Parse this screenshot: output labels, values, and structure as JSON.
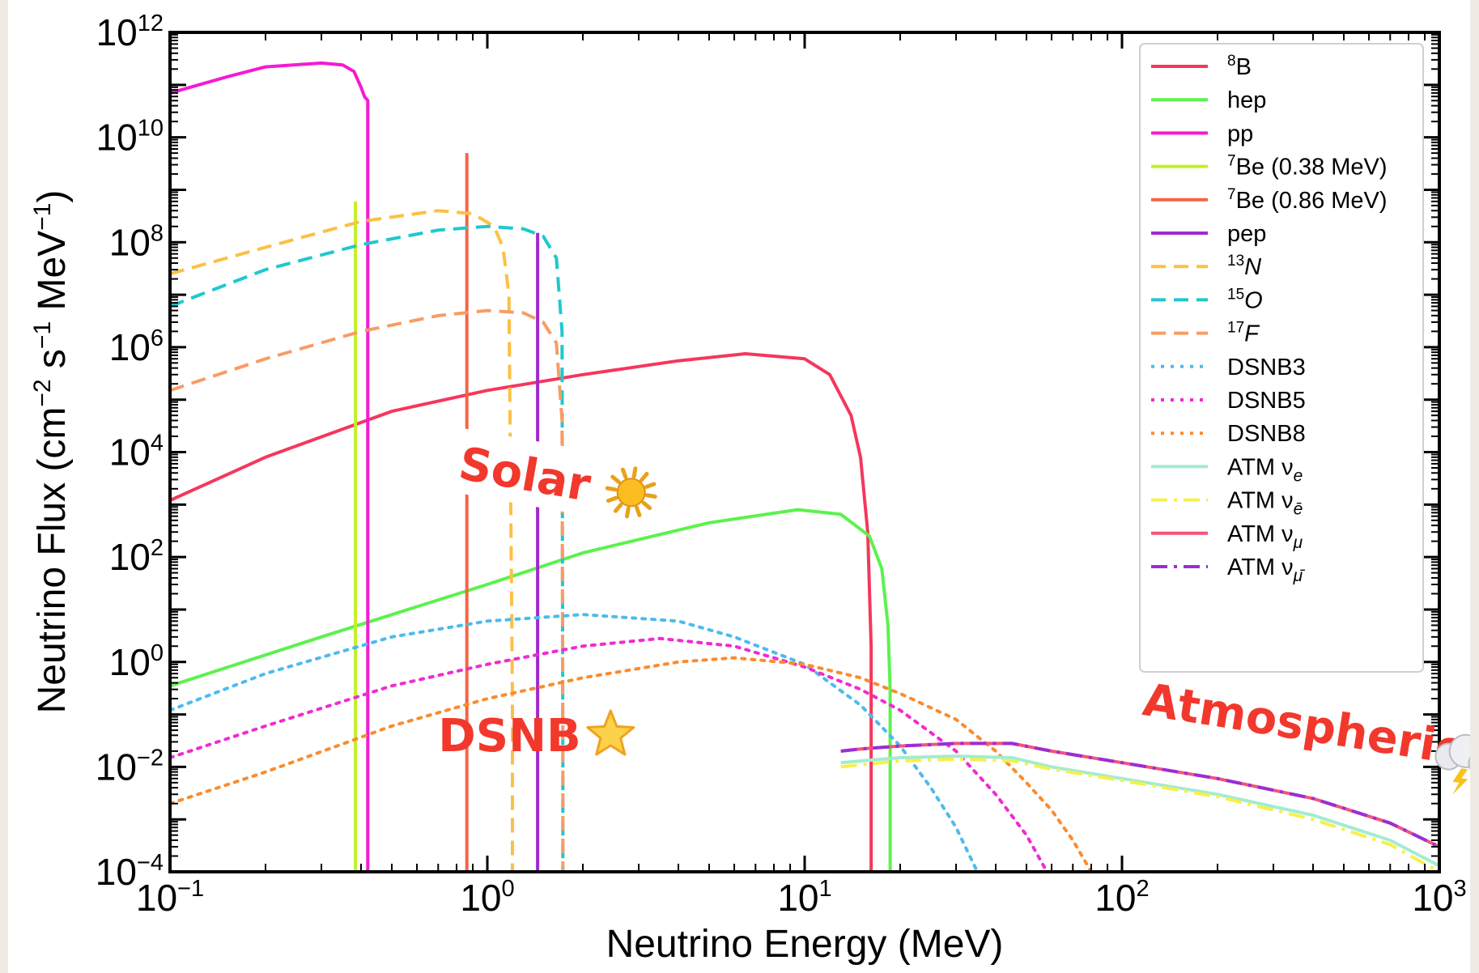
{
  "chart_data": {
    "type": "line",
    "xlabel": "Neutrino Energy (MeV)",
    "ylabel": "Neutrino Flux (cm",
    "ylabel_parts": [
      "Neutrino Flux (cm",
      "−2",
      " s",
      "−1",
      " MeV",
      "−1",
      ")"
    ],
    "x_scale": "log",
    "y_scale": "log",
    "xlim": [
      0.1,
      1000
    ],
    "ylim": [
      0.0001,
      1000000000000
    ],
    "x_ticks": [
      {
        "value": 0.1,
        "base": "10",
        "exp": "−1"
      },
      {
        "value": 1,
        "base": "10",
        "exp": "0"
      },
      {
        "value": 10,
        "base": "10",
        "exp": "1"
      },
      {
        "value": 100,
        "base": "10",
        "exp": "2"
      },
      {
        "value": 1000,
        "base": "10",
        "exp": "3"
      }
    ],
    "y_ticks": [
      {
        "value": 0.0001,
        "base": "10",
        "exp": "−4"
      },
      {
        "value": 0.01,
        "base": "10",
        "exp": "−2"
      },
      {
        "value": 1,
        "base": "10",
        "exp": "0"
      },
      {
        "value": 100,
        "base": "10",
        "exp": "2"
      },
      {
        "value": 10000,
        "base": "10",
        "exp": "4"
      },
      {
        "value": 1000000,
        "base": "10",
        "exp": "6"
      },
      {
        "value": 100000000,
        "base": "10",
        "exp": "8"
      },
      {
        "value": 10000000000,
        "base": "10",
        "exp": "10"
      },
      {
        "value": 1000000000000,
        "base": "10",
        "exp": "12"
      }
    ],
    "legend_position": "top-right",
    "grid": false,
    "series": [
      {
        "name": "8B",
        "label_sup": "8",
        "label_main": "B",
        "color": "#f5375d",
        "style": "solid",
        "x": [
          0.1,
          0.2,
          0.5,
          1,
          2,
          4,
          6.5,
          10,
          12,
          14,
          15,
          15.8,
          16.2,
          16.2
        ],
        "y": [
          1200,
          8000,
          60000,
          150000,
          300000,
          550000,
          750000,
          600000,
          300000,
          50000,
          8000,
          300,
          2,
          0.0001
        ]
      },
      {
        "name": "hep",
        "label_main": "hep",
        "color": "#5cf24d",
        "style": "solid",
        "x": [
          0.1,
          0.3,
          1,
          2,
          5,
          9.5,
          13,
          16,
          17.5,
          18.3,
          18.6,
          18.6
        ],
        "y": [
          0.35,
          3,
          30,
          120,
          450,
          800,
          650,
          250,
          60,
          5,
          0.3,
          0.0001
        ]
      },
      {
        "name": "pp",
        "label_main": "pp",
        "color": "#f51ad2",
        "style": "solid",
        "x": [
          0.1,
          0.15,
          0.2,
          0.3,
          0.35,
          0.38,
          0.4,
          0.41,
          0.42,
          0.42
        ],
        "y": [
          70000000000,
          140000000000,
          220000000000,
          260000000000,
          240000000000,
          180000000000,
          90000000000,
          60000000000,
          50000000000,
          0.0001
        ]
      },
      {
        "name": "7Be (0.38 MeV)",
        "label_sup": "7",
        "label_main": "Be (0.38 MeV)",
        "color": "#c3f024",
        "style": "solid",
        "x": [
          0.384,
          0.384
        ],
        "y": [
          0.0001,
          600000000
        ]
      },
      {
        "name": "7Be (0.86 MeV)",
        "label_sup": "7",
        "label_main": "Be (0.86 MeV)",
        "color": "#f56444",
        "style": "solid",
        "x": [
          0.862,
          0.862
        ],
        "y": [
          0.0001,
          5000000000
        ]
      },
      {
        "name": "pep",
        "label_main": "pep",
        "color": "#a129ce",
        "style": "solid",
        "x": [
          1.44,
          1.44
        ],
        "y": [
          0.0001,
          150000000
        ]
      },
      {
        "name": "13N",
        "label_sup": "13",
        "label_main": "N",
        "italic": true,
        "color": "#fcc044",
        "style": "dashed",
        "x": [
          0.1,
          0.2,
          0.4,
          0.7,
          0.9,
          1.05,
          1.12,
          1.17,
          1.2,
          1.2
        ],
        "y": [
          25000000,
          80000000,
          250000000,
          400000000,
          350000000,
          200000000,
          80000000,
          10000000,
          0.2,
          0.0001
        ]
      },
      {
        "name": "15O",
        "label_sup": "15",
        "label_main": "O",
        "italic": true,
        "color": "#1fc8cf",
        "style": "dashed",
        "x": [
          0.1,
          0.2,
          0.4,
          0.7,
          1,
          1.3,
          1.5,
          1.65,
          1.72,
          1.73,
          1.73
        ],
        "y": [
          6000000,
          30000000,
          90000000,
          170000000,
          200000000,
          180000000,
          130000000,
          50000000,
          2000000,
          0.01,
          0.0001
        ]
      },
      {
        "name": "17F",
        "label_sup": "17",
        "label_main": "F",
        "italic": true,
        "color": "#f89c66",
        "style": "dashed",
        "x": [
          0.1,
          0.2,
          0.4,
          0.7,
          1,
          1.3,
          1.5,
          1.65,
          1.72,
          1.73,
          1.73
        ],
        "y": [
          150000,
          600000,
          2000000,
          4000000,
          5000000,
          4500000,
          3000000,
          1200000,
          40000,
          0.01,
          0.0001
        ]
      },
      {
        "name": "DSNB3",
        "label_main": "DSNB3",
        "color": "#4bbcec",
        "style": "dotted",
        "x": [
          0.1,
          0.2,
          0.5,
          1,
          2,
          4,
          6,
          10,
          15,
          20,
          25,
          30,
          35
        ],
        "y": [
          0.12,
          0.6,
          3,
          6,
          8,
          6,
          3,
          0.9,
          0.15,
          0.025,
          0.004,
          0.0007,
          0.0001
        ]
      },
      {
        "name": "DSNB5",
        "label_main": "DSNB5",
        "color": "#f02bd1",
        "style": "dotted",
        "x": [
          0.1,
          0.2,
          0.5,
          1,
          2,
          3.5,
          6,
          10,
          15,
          20,
          30,
          40,
          50,
          58
        ],
        "y": [
          0.015,
          0.06,
          0.35,
          0.9,
          2,
          2.8,
          2,
          0.8,
          0.3,
          0.12,
          0.02,
          0.003,
          0.0005,
          0.0001
        ]
      },
      {
        "name": "DSNB8",
        "label_main": "DSNB8",
        "color": "#fa8c2e",
        "style": "dotted",
        "x": [
          0.1,
          0.2,
          0.5,
          1,
          2,
          4,
          6,
          10,
          15,
          20,
          30,
          40,
          50,
          60,
          70,
          80
        ],
        "y": [
          0.002,
          0.008,
          0.06,
          0.2,
          0.5,
          1,
          1.2,
          0.9,
          0.5,
          0.25,
          0.08,
          0.02,
          0.005,
          0.0015,
          0.0004,
          0.0001
        ]
      },
      {
        "name": "ATM νe",
        "label_main": "ATM ν",
        "label_sub": "e",
        "color": "#a2ecd0",
        "style": "solid",
        "x": [
          13,
          15,
          20,
          30,
          45,
          60,
          100,
          200,
          400,
          700,
          1000
        ],
        "y": [
          0.012,
          0.013,
          0.015,
          0.016,
          0.015,
          0.01,
          0.006,
          0.003,
          0.0012,
          0.0004,
          0.00013
        ]
      },
      {
        "name": "ATM νē",
        "label_main": "ATM ν",
        "label_sub": "ē",
        "color": "#f6f04a",
        "style": "dashdot",
        "x": [
          13,
          15,
          20,
          30,
          45,
          60,
          100,
          200,
          400,
          700,
          1000
        ],
        "y": [
          0.01,
          0.011,
          0.013,
          0.014,
          0.013,
          0.009,
          0.0055,
          0.0027,
          0.001,
          0.00033,
          0.0001
        ]
      },
      {
        "name": "ATM νμ",
        "label_main": "ATM ν",
        "label_sub": "μ",
        "color": "#f55478",
        "style": "solid",
        "x": [
          13,
          15,
          20,
          30,
          45,
          60,
          100,
          200,
          400,
          700,
          1000
        ],
        "y": [
          0.02,
          0.022,
          0.025,
          0.028,
          0.028,
          0.02,
          0.012,
          0.006,
          0.0025,
          0.00085,
          0.0003
        ]
      },
      {
        "name": "ATM νμ̄",
        "label_main": "ATM ν",
        "label_sub": "μ̄",
        "color": "#9a2ed6",
        "style": "dashdot",
        "x": [
          13,
          15,
          20,
          30,
          45,
          60,
          100,
          200,
          400,
          700,
          1000
        ],
        "y": [
          0.02,
          0.022,
          0.025,
          0.028,
          0.028,
          0.02,
          0.012,
          0.006,
          0.0025,
          0.00085,
          0.0003
        ]
      }
    ],
    "annotations": [
      {
        "text": "Solar",
        "icon": "sun-icon",
        "x": 0.85,
        "y": 3000
      },
      {
        "text": "DSNB",
        "icon": "star-icon",
        "x": 0.7,
        "y": 0.02
      },
      {
        "text": "Atmospheric",
        "icon": "cloud-storm-icon",
        "x": 115,
        "y": 0.1
      }
    ]
  }
}
